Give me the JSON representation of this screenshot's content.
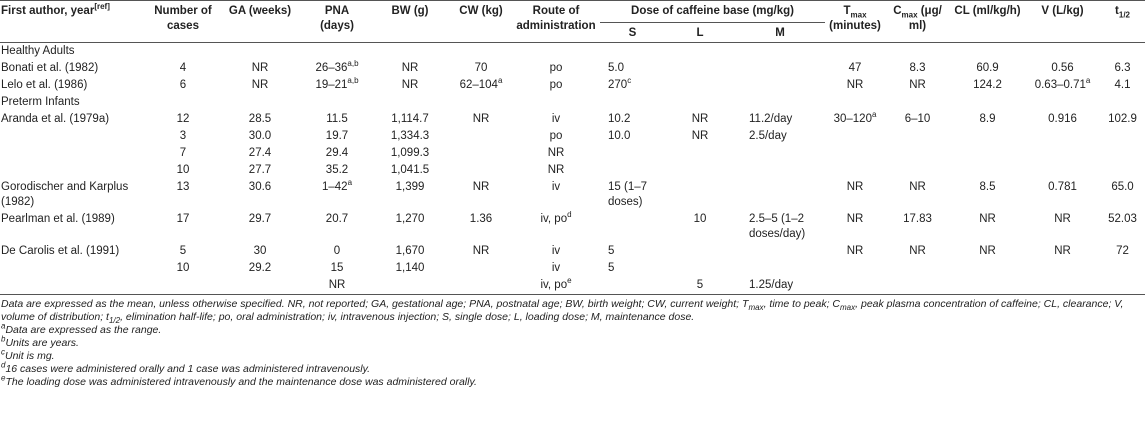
{
  "table": {
    "header": {
      "top": [
        [
          "First author, year",
          {
            "sup": "[ref]"
          }
        ],
        "Number of cases",
        "GA (weeks)",
        "PNA (days)",
        "BW (g)",
        "CW (kg)",
        "Route of administration",
        [
          "T",
          {
            "sub": "max"
          },
          " (minutes)"
        ],
        [
          "C",
          {
            "sub": "max"
          },
          " (μg/ ml)"
        ],
        "CL (ml/kg/h)",
        "V (L/kg)",
        [
          "t",
          {
            "sub": "1/2"
          }
        ]
      ],
      "dose_group": "Dose of caffeine base (mg/kg)",
      "dose_columns": [
        "S",
        "L",
        "M"
      ]
    },
    "sections": [
      {
        "title": "Healthy Adults",
        "rows": [
          [
            "Bonati et al. (1982)",
            "4",
            "NR",
            [
              "26–36",
              {
                "sup": "a,b"
              }
            ],
            "NR",
            "70",
            "po",
            "5.0",
            null,
            null,
            "47",
            "8.3",
            "60.9",
            "0.56",
            "6.3"
          ],
          [
            "Lelo et al. (1986)",
            "6",
            "NR",
            [
              "19–21",
              {
                "sup": "a,b"
              }
            ],
            "NR",
            [
              "62–104",
              {
                "sup": "a"
              }
            ],
            "po",
            [
              "270",
              {
                "sup": "c"
              }
            ],
            null,
            null,
            "NR",
            "NR",
            "124.2",
            [
              "0.63–0.71",
              {
                "sup": "a"
              }
            ],
            "4.1"
          ]
        ]
      },
      {
        "title": "Preterm Infants",
        "rows": [
          [
            "Aranda et al. (1979a)",
            "12",
            "28.5",
            "11.5",
            "1,114.7",
            "NR",
            "iv",
            "10.2",
            "NR",
            "11.2/day",
            [
              "30–120",
              {
                "sup": "a"
              }
            ],
            "6–10",
            "8.9",
            "0.916",
            "102.9"
          ],
          [
            null,
            "3",
            "30.0",
            "19.7",
            "1,334.3",
            null,
            "po",
            "10.0",
            "NR",
            "2.5/day",
            null,
            null,
            null,
            null,
            null
          ],
          [
            null,
            "7",
            "27.4",
            "29.4",
            "1,099.3",
            null,
            "NR",
            null,
            null,
            null,
            null,
            null,
            null,
            null,
            null
          ],
          [
            null,
            "10",
            "27.7",
            "35.2",
            "1,041.5",
            null,
            "NR",
            null,
            null,
            null,
            null,
            null,
            null,
            null,
            null
          ],
          [
            "Gorodischer and Karplus (1982)",
            "13",
            "30.6",
            [
              "1–42",
              {
                "sup": "a"
              }
            ],
            "1,399",
            "NR",
            "iv",
            "15 (1–7 doses)",
            null,
            null,
            "NR",
            "NR",
            "8.5",
            "0.781",
            "65.0"
          ],
          [
            "Pearlman et al. (1989)",
            "17",
            "29.7",
            "20.7",
            "1,270",
            "1.36",
            [
              "iv, po",
              {
                "sup": "d"
              }
            ],
            null,
            "10",
            "2.5–5 (1–2 doses/day)",
            "NR",
            "17.83",
            "NR",
            "NR",
            "52.03"
          ],
          [
            "De Carolis et al. (1991)",
            "5",
            "30",
            "0",
            "1,670",
            "NR",
            "iv",
            "5",
            null,
            null,
            "NR",
            "NR",
            "NR",
            "NR",
            "72"
          ],
          [
            null,
            "10",
            "29.2",
            "15",
            "1,140",
            null,
            "iv",
            "5",
            null,
            null,
            null,
            null,
            null,
            null,
            null
          ],
          [
            null,
            null,
            null,
            "NR",
            null,
            null,
            [
              "iv, po",
              {
                "sup": "e"
              }
            ],
            null,
            "5",
            "1.25/day",
            null,
            null,
            null,
            null,
            null
          ]
        ]
      }
    ],
    "footnotes": [
      [
        "Data are expressed as the mean, unless otherwise specified. NR, not reported; GA, gestational age; PNA, postnatal age; BW, birth weight; CW, current weight; T",
        {
          "sub": "max"
        },
        ", time to peak; C",
        {
          "sub": "max"
        },
        ", peak plasma concentration of caffeine; CL, clearance; V, volume of distribution; t",
        {
          "sub": "1/2"
        },
        ", elimination half-life; po, oral administration; iv, intravenous injection; S, single dose; L, loading dose; M, maintenance dose."
      ],
      [
        {
          "sup": "a"
        },
        "Data are expressed as the range."
      ],
      [
        {
          "sup": "b"
        },
        "Units are years."
      ],
      [
        {
          "sup": "c"
        },
        "Unit is mg."
      ],
      [
        {
          "sup": "d"
        },
        "16 cases were administered orally and 1 case was administered intravenously."
      ],
      [
        {
          "sup": "e"
        },
        "The loading dose was administered intravenously and the maintenance dose was administered orally."
      ]
    ]
  }
}
